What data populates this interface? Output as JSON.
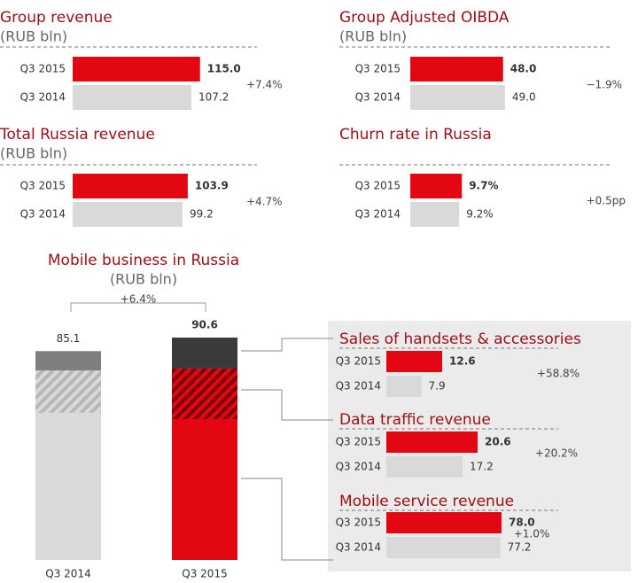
{
  "chart_data": [
    {
      "type": "hbar",
      "title": "Group revenue",
      "subtitle": "(RUB bln)",
      "categories": [
        "Q3 2015",
        "Q3 2014"
      ],
      "values": [
        115.0,
        107.2
      ],
      "value_labels": [
        "115.0",
        "107.2"
      ],
      "colors": [
        "#e30613",
        "#d9d9d9"
      ],
      "xlim": [
        0,
        120
      ],
      "change": "+7.4%"
    },
    {
      "type": "hbar",
      "title": "Group Adjusted OIBDA",
      "subtitle": "(RUB bln)",
      "categories": [
        "Q3 2015",
        "Q3 2014"
      ],
      "values": [
        48.0,
        49.0
      ],
      "value_labels": [
        "48.0",
        "49.0"
      ],
      "colors": [
        "#e30613",
        "#d9d9d9"
      ],
      "xlim": [
        0,
        55
      ],
      "change": "−1.9%"
    },
    {
      "type": "hbar",
      "title": "Total Russia revenue",
      "subtitle": "(RUB bln)",
      "categories": [
        "Q3 2015",
        "Q3 2014"
      ],
      "values": [
        103.9,
        99.2
      ],
      "value_labels": [
        "103.9",
        "99.2"
      ],
      "colors": [
        "#e30613",
        "#d9d9d9"
      ],
      "xlim": [
        0,
        120
      ],
      "change": "+4.7%"
    },
    {
      "type": "hbar",
      "title": "Churn rate in Russia",
      "categories": [
        "Q3 2015",
        "Q3 2014"
      ],
      "values": [
        9.7,
        9.2
      ],
      "value_labels": [
        "9.7%",
        "9.2%"
      ],
      "colors": [
        "#e30613",
        "#d9d9d9"
      ],
      "xlim": [
        0,
        20
      ],
      "change": "+0.5pp"
    },
    {
      "type": "hbar",
      "title": "Sales of handsets & accessories",
      "categories": [
        "Q3 2015",
        "Q3 2014"
      ],
      "values": [
        12.6,
        7.9
      ],
      "value_labels": [
        "12.6",
        "7.9"
      ],
      "colors": [
        "#e30613",
        "#d9d9d9"
      ],
      "xlim": [
        0,
        30
      ],
      "change": "+58.8%"
    },
    {
      "type": "hbar",
      "title": "Data traffic revenue",
      "categories": [
        "Q3 2015",
        "Q3 2014"
      ],
      "values": [
        20.6,
        17.2
      ],
      "value_labels": [
        "20.6",
        "17.2"
      ],
      "colors": [
        "#e30613",
        "#d9d9d9"
      ],
      "xlim": [
        0,
        30
      ],
      "change": "+20.2%"
    },
    {
      "type": "hbar",
      "title": "Mobile service revenue",
      "categories": [
        "Q3 2015",
        "Q3 2014"
      ],
      "values": [
        78.0,
        77.2
      ],
      "value_labels": [
        "78.0",
        "77.2"
      ],
      "colors": [
        "#e30613",
        "#d9d9d9"
      ],
      "xlim": [
        0,
        90
      ],
      "change": "+1.0%"
    },
    {
      "type": "stacked_bar",
      "title": "Mobile business in Russia",
      "subtitle": "(RUB bln)",
      "categories": [
        "Q3 2014",
        "Q3 2015"
      ],
      "ylim": [
        0,
        100
      ],
      "service": {
        "values": [
          77.2,
          78.0
        ],
        "colors": [
          "#d9d9d9",
          "#e30613"
        ]
      },
      "data": {
        "values": [
          17.2,
          20.6
        ],
        "colors": [
          "#d9d9d9",
          "#e30613"
        ],
        "hatch": true
      },
      "handsets": {
        "values": [
          7.9,
          12.6
        ],
        "colors": [
          "#7f7f7f",
          "#3a3a3a"
        ]
      },
      "totals": [
        85.1,
        90.6
      ],
      "change": "+6.4%"
    }
  ]
}
